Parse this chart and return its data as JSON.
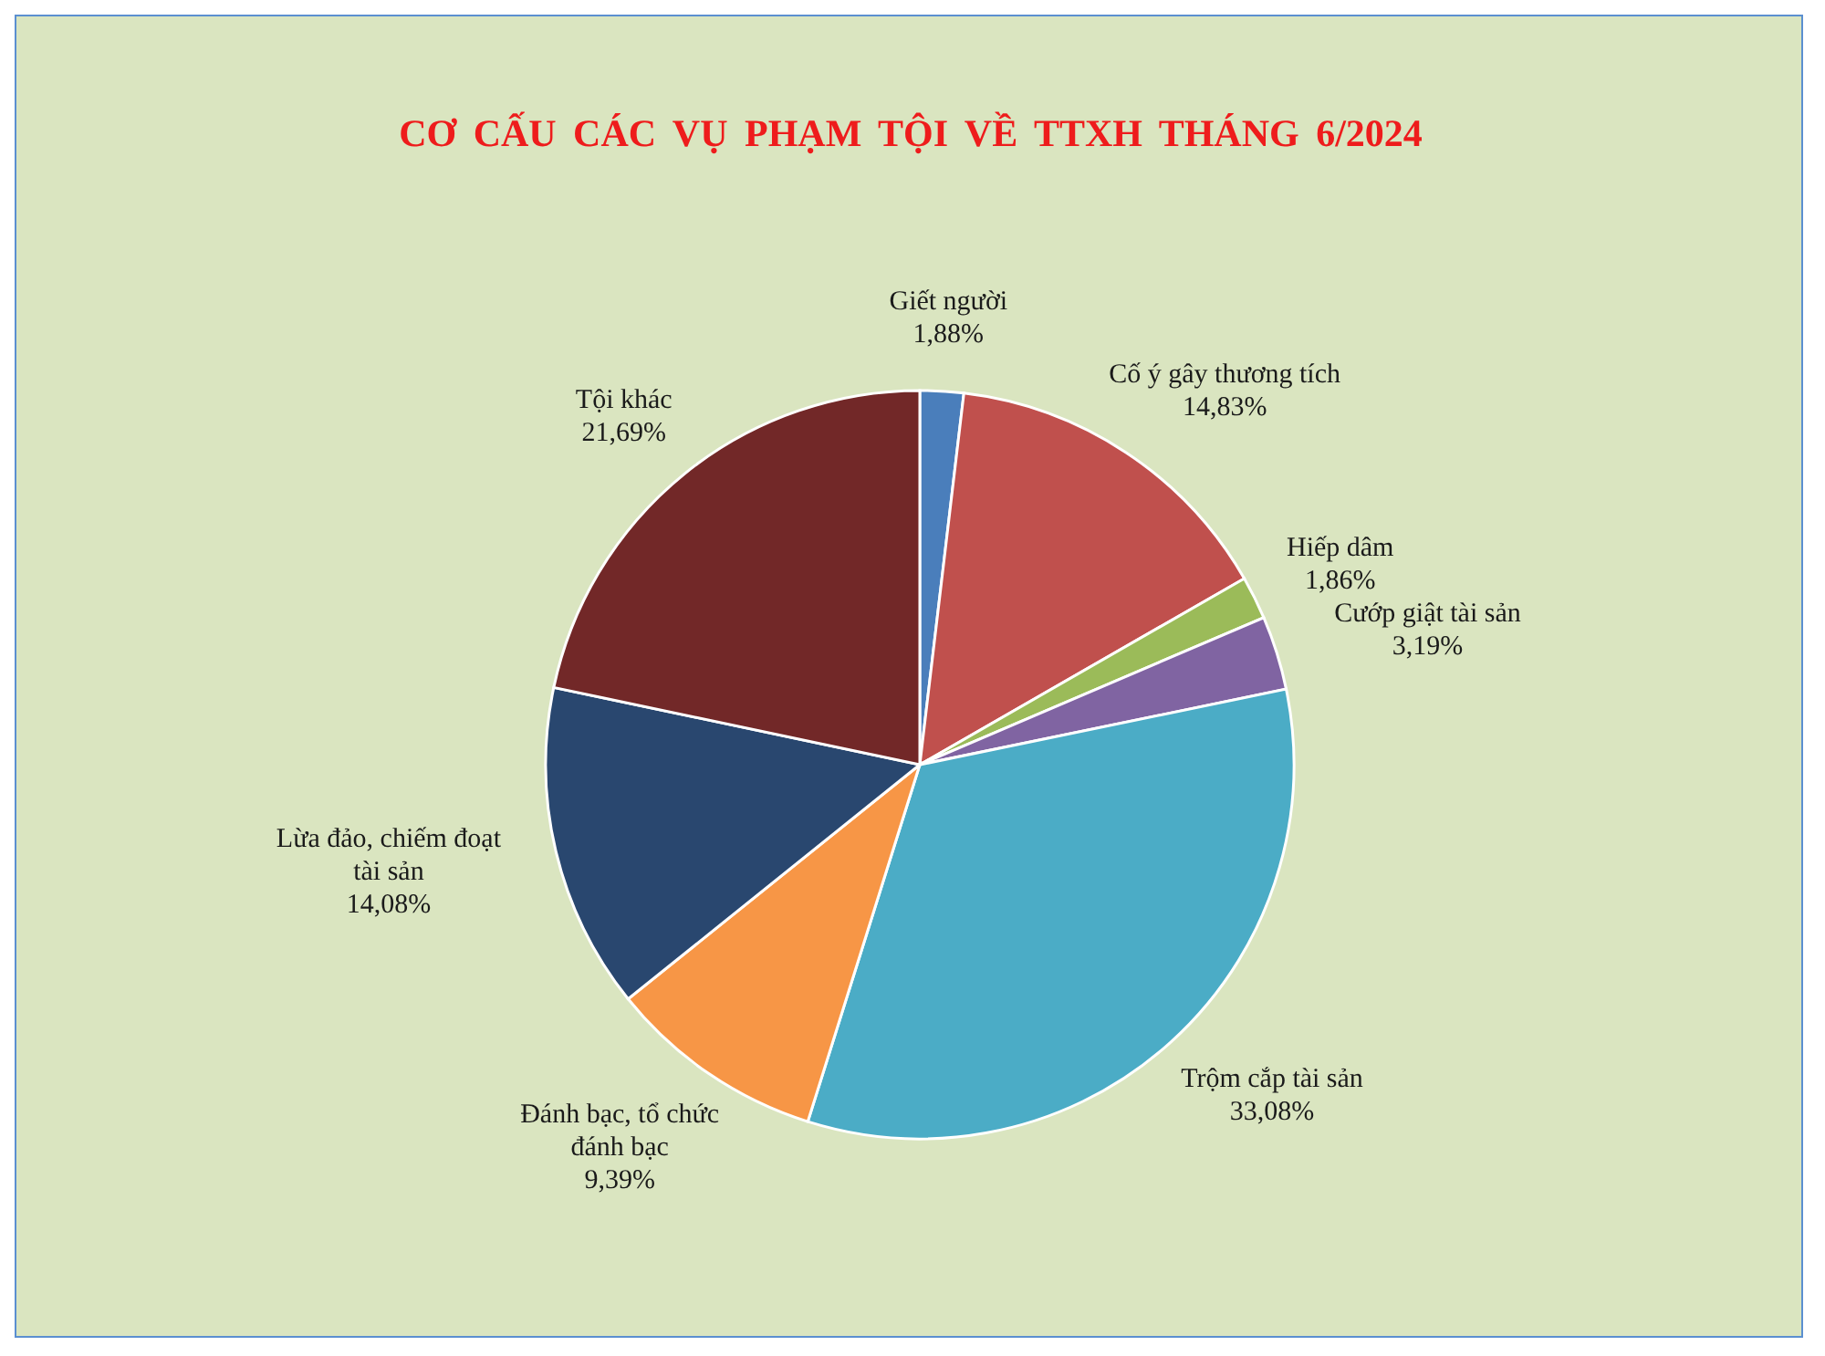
{
  "chart_data": {
    "type": "pie",
    "title": "CƠ CẤU CÁC VỤ PHẠM TỘI VỀ TTXH THÁNG 6/2024",
    "categories": [
      "Giết người",
      "Cố ý gây thương tích",
      "Hiếp dâm",
      "Cướp giật tài sản",
      "Trộm cắp tài sản",
      "Đánh bạc, tổ chức đánh bạc",
      "Lừa đảo, chiếm đoạt tài sản",
      "Tội khác"
    ],
    "values": [
      1.88,
      14.83,
      1.86,
      3.19,
      33.08,
      9.39,
      14.08,
      21.69
    ],
    "colors": [
      "#4a7ebb",
      "#c0504d",
      "#9bbb59",
      "#8064a2",
      "#4bacc6",
      "#f79646",
      "#29476f",
      "#722828"
    ],
    "value_labels": [
      "1,88%",
      "14,83%",
      "1,86%",
      "3,19%",
      "33,08%",
      "9,39%",
      "14,08%",
      "21,69%"
    ]
  }
}
